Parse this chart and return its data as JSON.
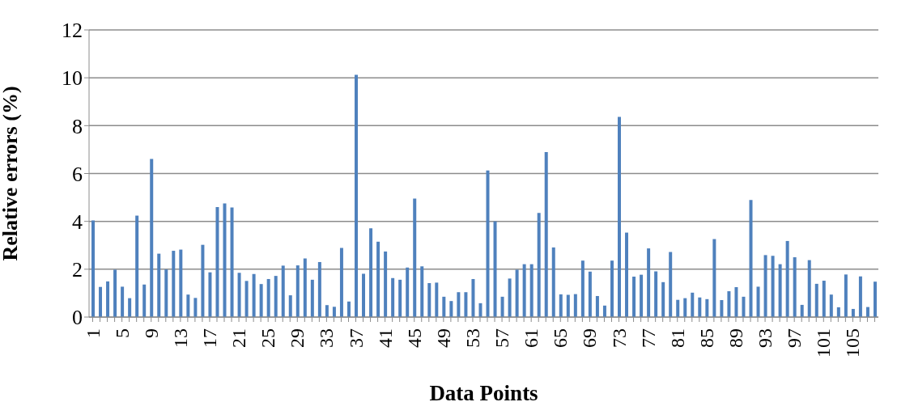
{
  "chart_data": {
    "type": "bar",
    "xlabel": "Data Points",
    "ylabel": "Relative errors (%)",
    "categories": [
      "1",
      null,
      null,
      null,
      "5",
      null,
      null,
      null,
      "9",
      null,
      null,
      null,
      "13",
      null,
      null,
      null,
      "17",
      null,
      null,
      null,
      "21",
      null,
      null,
      null,
      "25",
      null,
      null,
      null,
      "29",
      null,
      null,
      null,
      "33",
      null,
      null,
      null,
      "37",
      null,
      null,
      null,
      "41",
      null,
      null,
      null,
      "45",
      null,
      null,
      null,
      "49",
      null,
      null,
      null,
      "53",
      null,
      null,
      null,
      "57",
      null,
      null,
      null,
      "61",
      null,
      null,
      null,
      "65",
      null,
      null,
      null,
      "69",
      null,
      null,
      null,
      "73",
      null,
      null,
      null,
      "77",
      null,
      null,
      null,
      "81",
      null,
      null,
      null,
      "85",
      null,
      null,
      null,
      "89",
      null,
      null,
      null,
      "93",
      null,
      null,
      null,
      "97",
      null,
      null,
      null,
      "101",
      null,
      null,
      null,
      "105",
      null,
      null,
      null
    ],
    "values": [
      4.04,
      1.26,
      1.49,
      1.98,
      1.27,
      0.79,
      4.24,
      1.36,
      6.61,
      2.65,
      1.99,
      2.77,
      2.82,
      0.94,
      0.8,
      3.02,
      1.87,
      4.6,
      4.75,
      4.58,
      1.85,
      1.51,
      1.8,
      1.38,
      1.59,
      1.72,
      2.15,
      0.91,
      2.16,
      2.45,
      1.56,
      2.3,
      0.5,
      0.43,
      2.89,
      0.65,
      10.12,
      1.81,
      3.71,
      3.15,
      2.74,
      1.63,
      1.56,
      2.07,
      4.95,
      2.12,
      1.42,
      1.44,
      0.85,
      0.67,
      1.04,
      1.04,
      1.59,
      0.58,
      6.13,
      4.0,
      0.85,
      1.61,
      1.98,
      2.21,
      2.21,
      4.35,
      6.9,
      2.91,
      0.95,
      0.93,
      0.96,
      2.36,
      1.9,
      0.88,
      0.48,
      2.36,
      8.37,
      3.53,
      1.69,
      1.77,
      2.87,
      1.91,
      1.46,
      2.72,
      0.72,
      0.79,
      1.02,
      0.82,
      0.75,
      3.26,
      0.71,
      1.08,
      1.25,
      0.85,
      4.89,
      1.27,
      2.59,
      2.56,
      2.21,
      3.18,
      2.5,
      0.51,
      2.38,
      1.39,
      1.52,
      0.94,
      0.41,
      1.78,
      0.34,
      1.7,
      0.42,
      1.48
    ],
    "color": "#4f81bd",
    "ylim": [
      0,
      12
    ],
    "yticks": [
      0,
      2,
      4,
      6,
      8,
      10,
      12
    ],
    "grid": "y"
  }
}
